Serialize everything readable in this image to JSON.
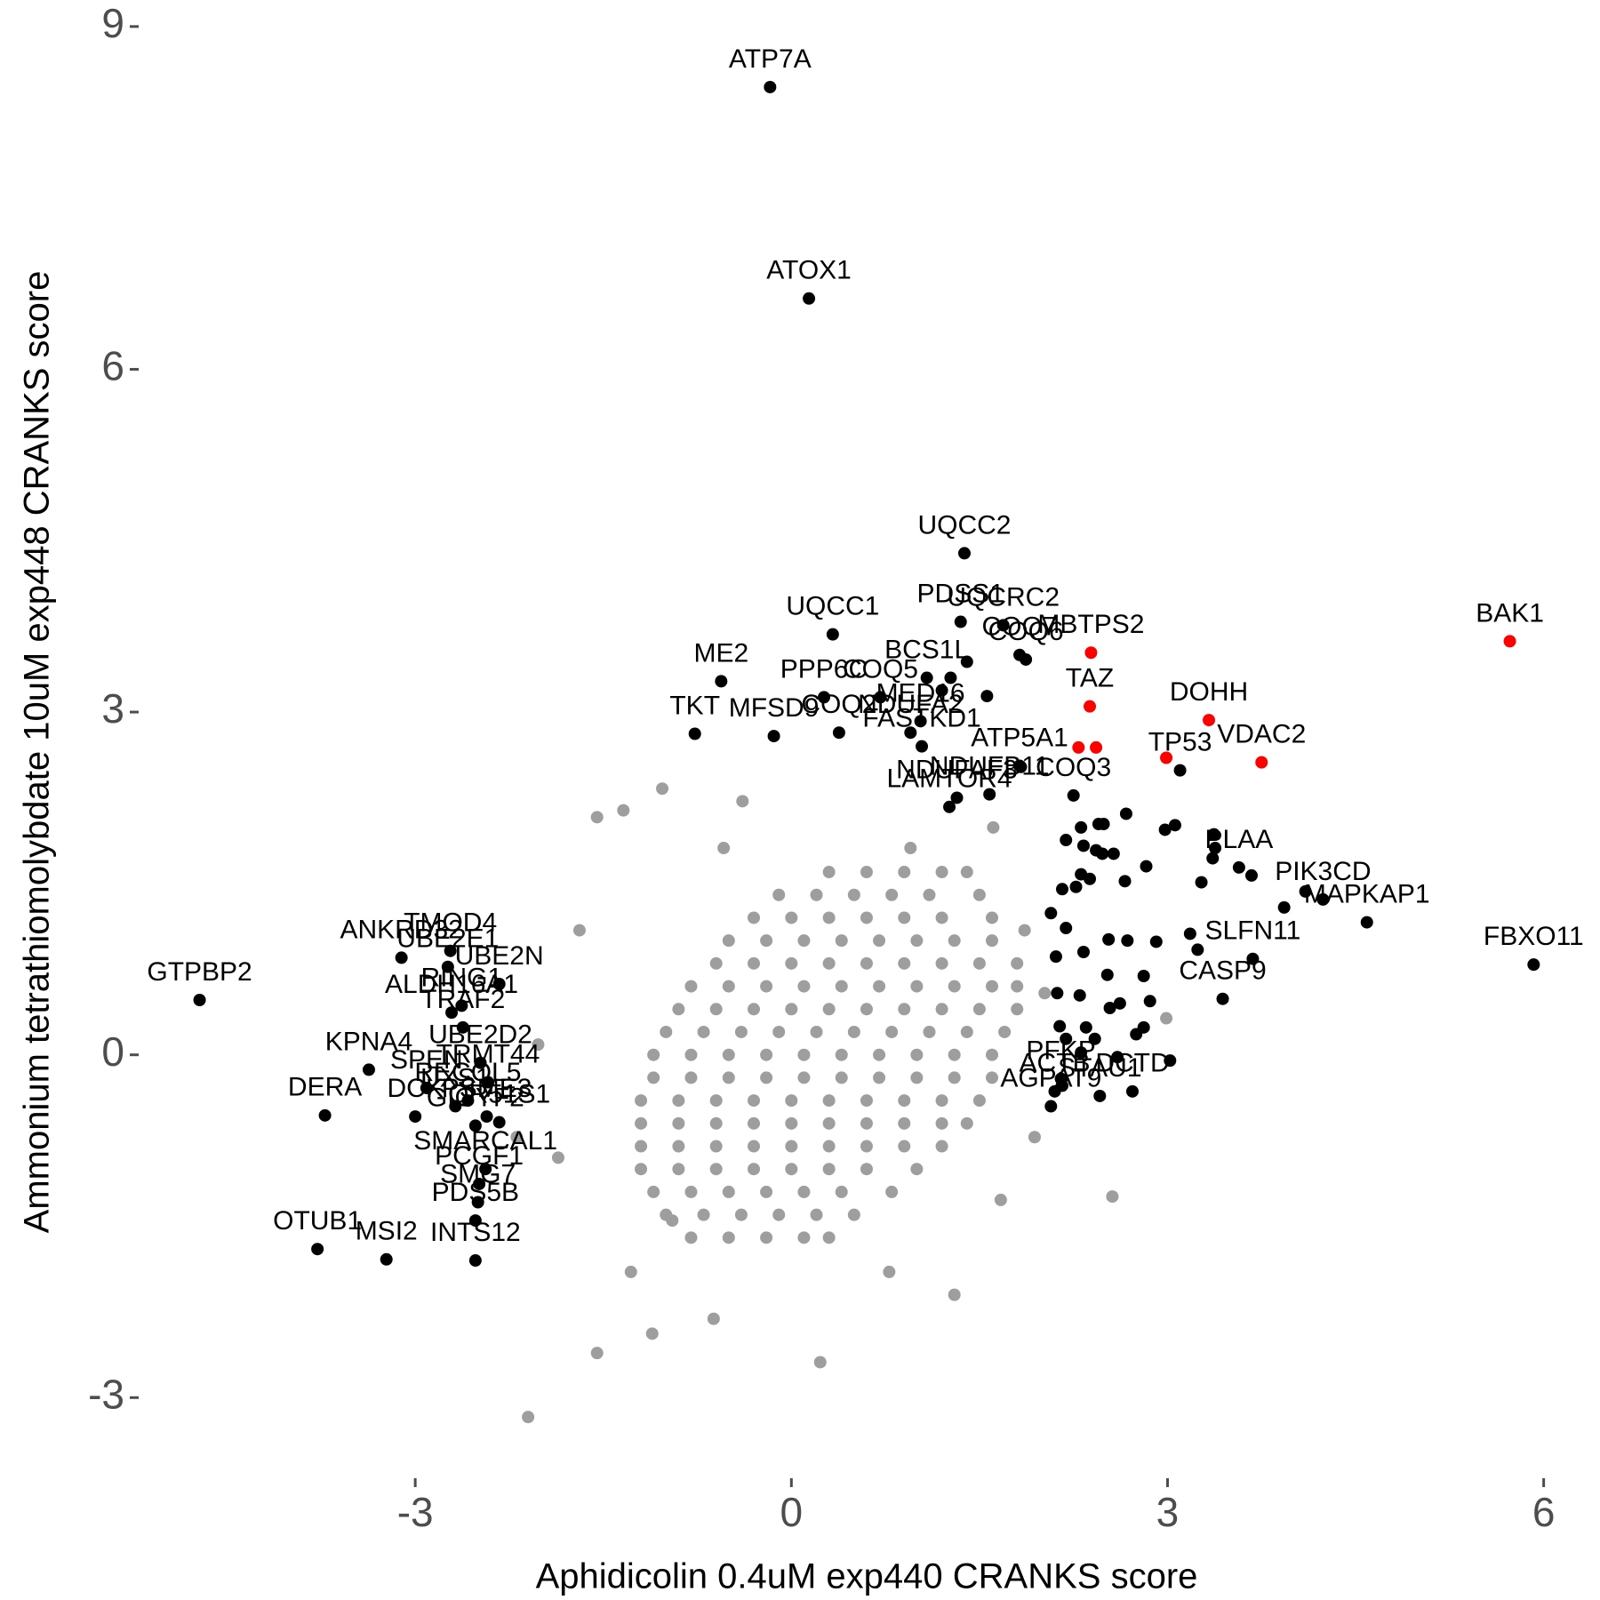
{
  "chart_data": {
    "type": "scatter",
    "x_label": "Aphidicolin 0.4uM exp440 CRANKS score",
    "y_label": "Ammonium tetrathiomolybdate 10uM exp448 CRANKS score",
    "xlim": [
      -5.05,
      6.35
    ],
    "ylim": [
      -3.55,
      9.1
    ],
    "xticks": [
      -3,
      0,
      3,
      6
    ],
    "yticks": [
      -3,
      0,
      3,
      6,
      9
    ],
    "grid": false,
    "series": [
      {
        "color": "#9e9e9e",
        "x": [
          -0.8,
          -0.5,
          -0.2,
          0.1,
          0.3,
          -1.0,
          -0.7,
          -0.4,
          -0.1,
          0.2,
          0.5,
          -1.1,
          -0.8,
          -0.5,
          -0.2,
          0.1,
          0.4,
          0.8,
          -1.2,
          -0.9,
          -0.6,
          -0.3,
          0.0,
          0.3,
          0.6,
          1.0,
          -1.2,
          -0.9,
          -0.6,
          -0.3,
          0.0,
          0.3,
          0.6,
          0.9,
          1.2,
          -1.2,
          -0.9,
          -0.6,
          -0.3,
          0,
          0.3,
          0.6,
          0.9,
          1.2,
          1.4,
          -1.2,
          -0.9,
          -0.6,
          -0.3,
          0,
          0.3,
          0.6,
          0.9,
          1.2,
          1.5,
          -1.1,
          -0.8,
          -0.5,
          -0.2,
          0.1,
          0.4,
          0.7,
          1.0,
          1.3,
          1.6,
          -1.1,
          -0.8,
          -0.5,
          -0.2,
          0.1,
          0.4,
          0.7,
          1.0,
          1.3,
          1.6,
          -1.0,
          -0.7,
          -0.4,
          -0.1,
          0.2,
          0.5,
          0.8,
          1.1,
          1.4,
          1.7,
          -0.9,
          -0.6,
          -0.3,
          0,
          0.3,
          0.6,
          0.9,
          1.2,
          1.5,
          1.8,
          -0.8,
          -0.5,
          -0.2,
          0.1,
          0.4,
          0.7,
          1.0,
          1.3,
          1.6,
          1.8,
          -0.6,
          -0.3,
          0,
          0.3,
          0.6,
          0.9,
          1.2,
          1.5,
          1.8,
          -0.5,
          -0.2,
          0.1,
          0.4,
          0.7,
          1.0,
          1.3,
          1.6,
          -0.3,
          0,
          0.3,
          0.6,
          0.9,
          1.2,
          1.6,
          -0.1,
          0.2,
          0.5,
          0.8,
          1.1,
          1.5,
          0.3,
          0.6,
          0.9,
          1.2,
          1.4,
          -2.1,
          0.23,
          -1.11,
          -1.55,
          -1.55,
          -1.34,
          -1.03,
          -0.39,
          2.56,
          1.3,
          1.67,
          2.99,
          -1.86,
          -2.02,
          -1.69,
          -1.28,
          -0.62,
          0.78,
          1.86,
          1.94,
          2.02,
          1.61,
          0.95,
          -0.54,
          -2.19,
          -0.95
        ],
        "values": [
          -1.6,
          -1.6,
          -1.6,
          -1.6,
          -1.6,
          -1.4,
          -1.4,
          -1.4,
          -1.4,
          -1.4,
          -1.4,
          -1.2,
          -1.2,
          -1.2,
          -1.2,
          -1.2,
          -1.2,
          -1.2,
          -1.0,
          -1.0,
          -1.0,
          -1.0,
          -1.0,
          -1.0,
          -1.0,
          -1.0,
          -0.8,
          -0.8,
          -0.8,
          -0.8,
          -0.8,
          -0.8,
          -0.8,
          -0.8,
          -0.8,
          -0.6,
          -0.6,
          -0.6,
          -0.6,
          -0.6,
          -0.6,
          -0.6,
          -0.6,
          -0.6,
          -0.6,
          -0.4,
          -0.4,
          -0.4,
          -0.4,
          -0.4,
          -0.4,
          -0.4,
          -0.4,
          -0.4,
          -0.4,
          -0.2,
          -0.2,
          -0.2,
          -0.2,
          -0.2,
          -0.2,
          -0.2,
          -0.2,
          -0.2,
          -0.2,
          0,
          0,
          0,
          0,
          0,
          0,
          0,
          0,
          0,
          0,
          0.2,
          0.2,
          0.2,
          0.2,
          0.2,
          0.2,
          0.2,
          0.2,
          0.2,
          0.2,
          0.4,
          0.4,
          0.4,
          0.4,
          0.4,
          0.4,
          0.4,
          0.4,
          0.4,
          0.4,
          0.6,
          0.6,
          0.6,
          0.6,
          0.6,
          0.6,
          0.6,
          0.6,
          0.6,
          0.6,
          0.8,
          0.8,
          0.8,
          0.8,
          0.8,
          0.8,
          0.8,
          0.8,
          0.8,
          1.0,
          1.0,
          1.0,
          1.0,
          1.0,
          1.0,
          1.0,
          1.0,
          1.2,
          1.2,
          1.2,
          1.2,
          1.2,
          1.2,
          1.2,
          1.4,
          1.4,
          1.4,
          1.4,
          1.4,
          1.4,
          1.6,
          1.6,
          1.6,
          1.6,
          1.6,
          -3.17,
          -2.69,
          -2.44,
          -2.61,
          2.08,
          2.14,
          2.33,
          2.22,
          -1.24,
          -2.1,
          -1.27,
          0.32,
          -0.9,
          0.09,
          1.09,
          -1.9,
          -2.31,
          -1.9,
          1.09,
          -0.72,
          0.54,
          1.99,
          1.81,
          1.81,
          -0.72,
          -1.45
        ]
      },
      {
        "color": "#000000",
        "x": [
          -0.17,
          0.14,
          1.38,
          1.69,
          1.35,
          0.33,
          1.82,
          1.08,
          1.87,
          -0.56,
          0.26,
          -0.77,
          -0.14,
          0.38,
          1.03,
          0.71,
          1.04,
          1.82,
          1.58,
          0.95,
          1.32,
          1.26,
          2.25,
          3.1,
          3.57,
          4.24,
          4.59,
          5.92,
          3.68,
          3.44,
          2.72,
          2.46,
          2.15,
          2.1,
          2.07,
          -3.11,
          -2.72,
          -2.74,
          -4.72,
          -2.71,
          -2.63,
          -2.33,
          -2.62,
          -3.37,
          -2.91,
          -2.48,
          -2.42,
          -3.72,
          -3.0,
          -2.58,
          -2.52,
          -2.68,
          -2.43,
          -2.33,
          -2.44,
          -2.49,
          -2.5,
          -2.52,
          -3.78,
          -3.23,
          -2.52,
          2.31,
          2.45,
          2.49,
          2.67,
          2.19,
          2.33,
          2.43,
          2.48,
          2.57,
          2.66,
          2.83,
          2.31,
          2.38,
          2.27,
          2.16,
          2.07,
          2.19,
          2.33,
          2.53,
          2.68,
          2.91,
          3.18,
          3.24,
          2.11,
          2.52,
          2.54,
          2.62,
          2.81,
          2.86,
          2.75,
          2.81,
          2.12,
          2.35,
          2.42,
          2.6,
          3.02,
          2.31,
          2.14,
          3.06,
          2.98,
          3.37,
          3.38,
          3.36,
          3.27,
          3.93,
          4.1,
          3.67,
          2.3,
          2.19,
          2.16,
          1.27,
          1.2,
          1.4,
          1.56,
          1.83
        ],
        "values": [
          8.47,
          6.62,
          4.39,
          3.76,
          3.79,
          3.68,
          3.5,
          3.3,
          3.46,
          3.27,
          3.13,
          2.81,
          2.79,
          2.82,
          2.92,
          3.13,
          2.7,
          2.53,
          2.28,
          2.82,
          2.25,
          2.17,
          2.27,
          2.49,
          1.64,
          1.36,
          1.16,
          0.79,
          0.84,
          0.49,
          -0.32,
          -0.36,
          -0.21,
          -0.32,
          -0.45,
          0.85,
          0.91,
          0.77,
          0.48,
          0.37,
          0.43,
          0.62,
          0.24,
          -0.13,
          -0.29,
          -0.07,
          -0.24,
          -0.53,
          -0.54,
          -0.4,
          -0.62,
          -0.45,
          -0.54,
          -0.59,
          -1.0,
          -1.13,
          -1.29,
          -1.45,
          -1.7,
          -1.79,
          -1.8,
          1.99,
          2.02,
          2.02,
          2.11,
          1.88,
          1.83,
          1.79,
          1.76,
          1.76,
          1.52,
          1.65,
          1.58,
          1.54,
          1.47,
          1.45,
          1.24,
          1.11,
          0.9,
          1.01,
          1.0,
          0.99,
          1.06,
          0.92,
          0.86,
          0.7,
          0.41,
          0.45,
          0.69,
          0.47,
          0.18,
          0.24,
          0.54,
          0.24,
          0.14,
          -0.02,
          -0.05,
          0.02,
          0.25,
          2.01,
          1.97,
          1.93,
          1.81,
          1.72,
          1.51,
          1.29,
          1.43,
          1.57,
          0.52,
          0.14,
          -0.27,
          3.3,
          3.19,
          3.44,
          3.14,
          2.52
        ],
        "labels": [
          "ATP7A",
          "ATOX1",
          "UQCC2",
          "UQCRC2",
          "PDSS1",
          "UQCC1",
          "COQ7",
          "BCS1L",
          "COQ6",
          "ME2",
          "PPP6C",
          "TKT",
          "MFSD9",
          "COQ2",
          "MED16",
          "COQ5",
          "FASTKD1",
          "ATP5A1",
          "NDUFB11",
          "NDUFA2",
          "NDUFAF3",
          "LAMTOR4",
          "COQ3",
          "TP53",
          "PLAA",
          "PIK3CD",
          "MAPKAP1",
          "FBXO11",
          "SLFN11",
          "CASP9",
          "DCTD",
          "STAU1",
          "PFKP",
          "ACTB",
          "AGPAT9",
          "ANKRD32",
          "TMOD4",
          "UBE2E1",
          "GTPBP2",
          "ALDH16A1",
          "RING1",
          "UBE2N",
          "TRAF2",
          "KPNA4",
          "SPEN",
          "UBE2D2",
          "TRMT44",
          "DERA",
          "DCK",
          "RECQL5",
          "GIGYF2",
          "UXS1",
          "PSME3",
          "OR51S1",
          "SMARCAL1",
          "PCGF1",
          "SMG7",
          "PDS5B",
          "OTUB1",
          "MSI2",
          "INTS12",
          null,
          null,
          null,
          null,
          null,
          null,
          null,
          null,
          null,
          null,
          null,
          null,
          null,
          null,
          null,
          null,
          null,
          null,
          null,
          null,
          null,
          null,
          null,
          null,
          null,
          null,
          null,
          null,
          null,
          null,
          null,
          null,
          null,
          null,
          null,
          null,
          null,
          null,
          null,
          null,
          null,
          null,
          null,
          null,
          null,
          null,
          null,
          null,
          null,
          null,
          null,
          null,
          null,
          null,
          null
        ]
      },
      {
        "color": "#ff0000",
        "x": [
          5.73,
          2.39,
          2.38,
          3.33,
          3.75,
          2.29,
          2.43,
          2.99
        ],
        "values": [
          3.62,
          3.52,
          3.05,
          2.93,
          2.56,
          2.69,
          2.69,
          2.6
        ],
        "labels": [
          "BAK1",
          "MBTPS2",
          "TAZ",
          "DOHH",
          "VDAC2",
          null,
          null,
          null
        ]
      }
    ]
  }
}
